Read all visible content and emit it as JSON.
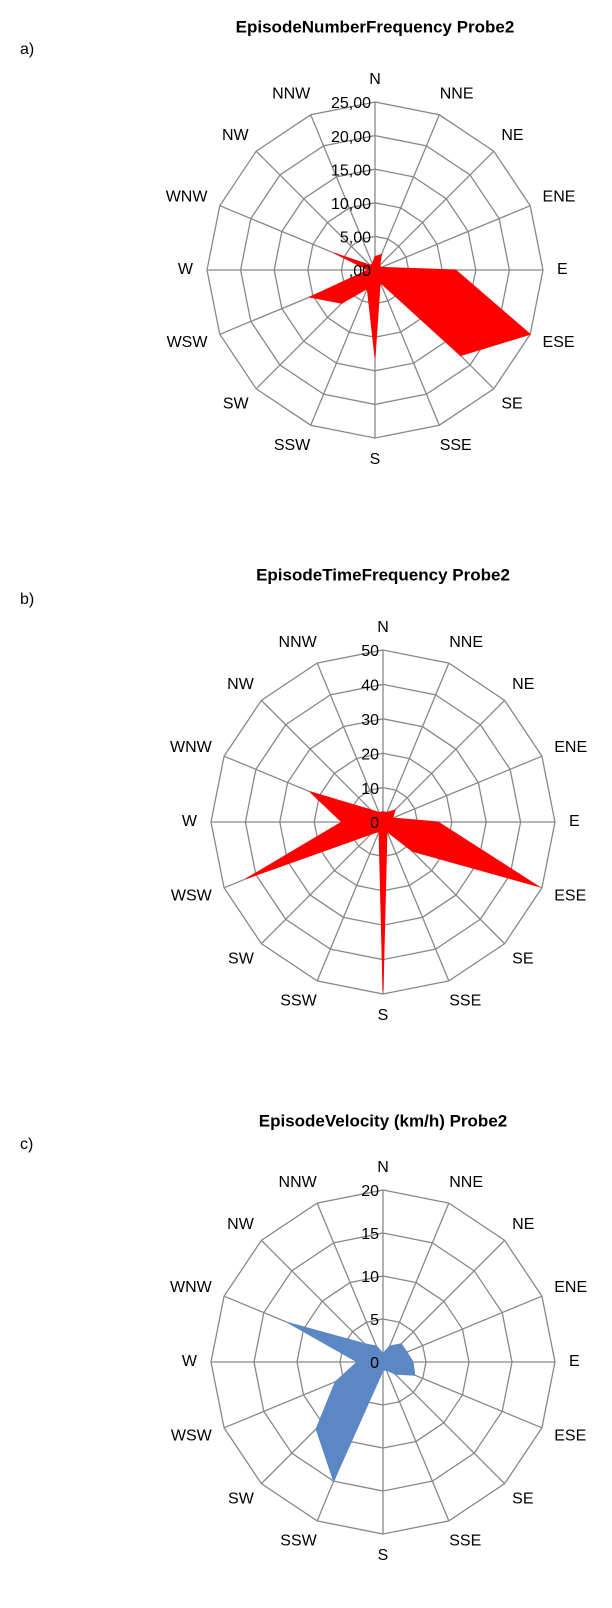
{
  "chart_data": [
    {
      "type": "radar",
      "panel": "a)",
      "title": "EpisodeNumberFrequency Probe2",
      "categories": [
        "N",
        "NNE",
        "NE",
        "ENE",
        "E",
        "ESE",
        "SE",
        "SSE",
        "S",
        "SSW",
        "SW",
        "WSW",
        "W",
        "WNW",
        "NW",
        "NNW"
      ],
      "values": [
        2,
        2.5,
        1,
        1,
        12,
        25,
        18,
        2,
        13,
        3,
        7,
        10.5,
        1,
        6.5,
        1,
        1
      ],
      "color": "#ff0000",
      "ylim": [
        0,
        25
      ],
      "yticks": [
        {
          "value": 0,
          "label": ",00"
        },
        {
          "value": 5,
          "label": "5,00"
        },
        {
          "value": 10,
          "label": "10,00"
        },
        {
          "value": 15,
          "label": "15,00"
        },
        {
          "value": 20,
          "label": "20,00"
        },
        {
          "value": 25,
          "label": "25,00"
        }
      ]
    },
    {
      "type": "radar",
      "panel": "b)",
      "title": "EpisodeTimeFrequency Probe2",
      "categories": [
        "N",
        "NNE",
        "NE",
        "ENE",
        "E",
        "ESE",
        "SE",
        "SSE",
        "S",
        "SSW",
        "SW",
        "WSW",
        "W",
        "WNW",
        "NW",
        "NNW"
      ],
      "values": [
        3,
        3,
        5,
        3,
        16,
        49,
        12,
        3,
        49,
        3,
        5,
        43,
        12,
        23,
        5,
        3
      ],
      "color": "#ff0000",
      "ylim": [
        0,
        50
      ],
      "yticks": [
        0,
        10,
        20,
        30,
        40,
        50
      ]
    },
    {
      "type": "radar",
      "panel": "c)",
      "title": "EpisodeVelocity (km/h) Probe2",
      "categories": [
        "N",
        "NNE",
        "NE",
        "ENE",
        "E",
        "ESE",
        "SE",
        "SSE",
        "S",
        "SSW",
        "SW",
        "WSW",
        "W",
        "WNW",
        "NW",
        "NNW"
      ],
      "values": [
        1,
        2,
        3,
        3,
        3.5,
        4,
        2,
        1,
        1,
        15,
        11,
        6,
        3,
        12,
        3,
        2
      ],
      "color": "#5b87c5",
      "ylim": [
        0,
        20
      ],
      "yticks": [
        0,
        5,
        10,
        15,
        20
      ]
    }
  ]
}
